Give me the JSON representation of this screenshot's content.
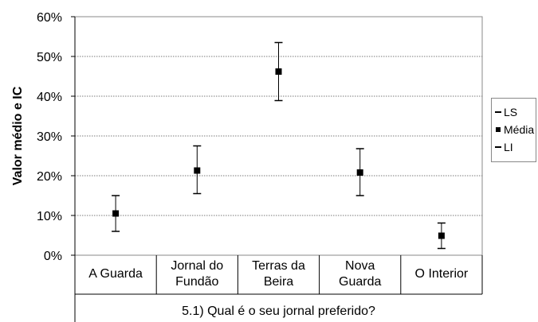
{
  "chart_data": {
    "type": "errorbar",
    "categories": [
      "A Guarda",
      "Jornal do Fundão",
      "Terras da Beira",
      "Nova Guarda",
      "O Interior"
    ],
    "category_label_lines": [
      [
        "A Guarda"
      ],
      [
        "Jornal do",
        "Fundão"
      ],
      [
        "Terras da",
        "Beira"
      ],
      [
        "Nova",
        "Guarda"
      ],
      [
        "O Interior"
      ]
    ],
    "series": [
      {
        "name": "LS",
        "values": [
          0.15,
          0.275,
          0.535,
          0.268,
          0.081
        ]
      },
      {
        "name": "Média",
        "values": [
          0.105,
          0.213,
          0.462,
          0.208,
          0.049
        ]
      },
      {
        "name": "LI",
        "values": [
          0.06,
          0.155,
          0.389,
          0.15,
          0.017
        ]
      }
    ],
    "ylabel": "Valor médio e IC",
    "xlabel": "5.1) Qual é o seu jornal preferido?",
    "ylim": [
      0,
      0.6
    ],
    "yticks": [
      "0%",
      "10%",
      "20%",
      "30%",
      "40%",
      "50%",
      "60%"
    ],
    "grid": true,
    "legend_position": "right"
  },
  "legend": {
    "ls_label": "LS",
    "media_label": "Média",
    "li_label": "LI"
  }
}
